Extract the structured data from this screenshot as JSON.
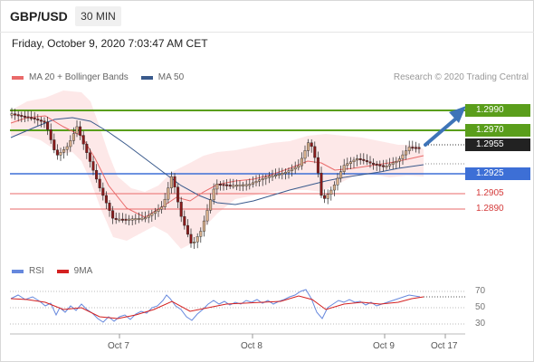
{
  "header": {
    "symbol": "GBP/USD",
    "interval": "30 MIN",
    "datetime": "Friday, October 9, 2020 7:03:47 AM CET"
  },
  "legend": {
    "ma20_label": "MA 20 + Bollinger Bands",
    "ma50_label": "MA 50",
    "credit": "Research © 2020 Trading Central",
    "rsi_label": "RSI",
    "ma9_label": "9MA"
  },
  "colors": {
    "resistance": "#5a9e1b",
    "pivot": "#3d6fd6",
    "support": "#e96a6a",
    "ma20": "#e96a6a",
    "ma50": "#3a5a8c",
    "bollinger_fill": "#fde4e4",
    "candle_up": "#d8b08c",
    "candle_down": "#8a1b1b",
    "arrow": "#3e74b8",
    "rsi": "#6688dd",
    "rsi_ma": "#d42020"
  },
  "price_levels": [
    {
      "value": "1.2990",
      "style": "green"
    },
    {
      "value": "1.2970",
      "style": "green"
    },
    {
      "value": "1.2955",
      "style": "black"
    },
    {
      "value": "1.2925",
      "style": "blue"
    },
    {
      "value": "1.2905",
      "style": "red"
    },
    {
      "value": "1.2890",
      "style": "red"
    }
  ],
  "rsi_levels": [
    "70",
    "50",
    "30"
  ],
  "x_axis": [
    "Oct 7",
    "Oct 8",
    "Oct 9",
    "Oct 17"
  ]
}
